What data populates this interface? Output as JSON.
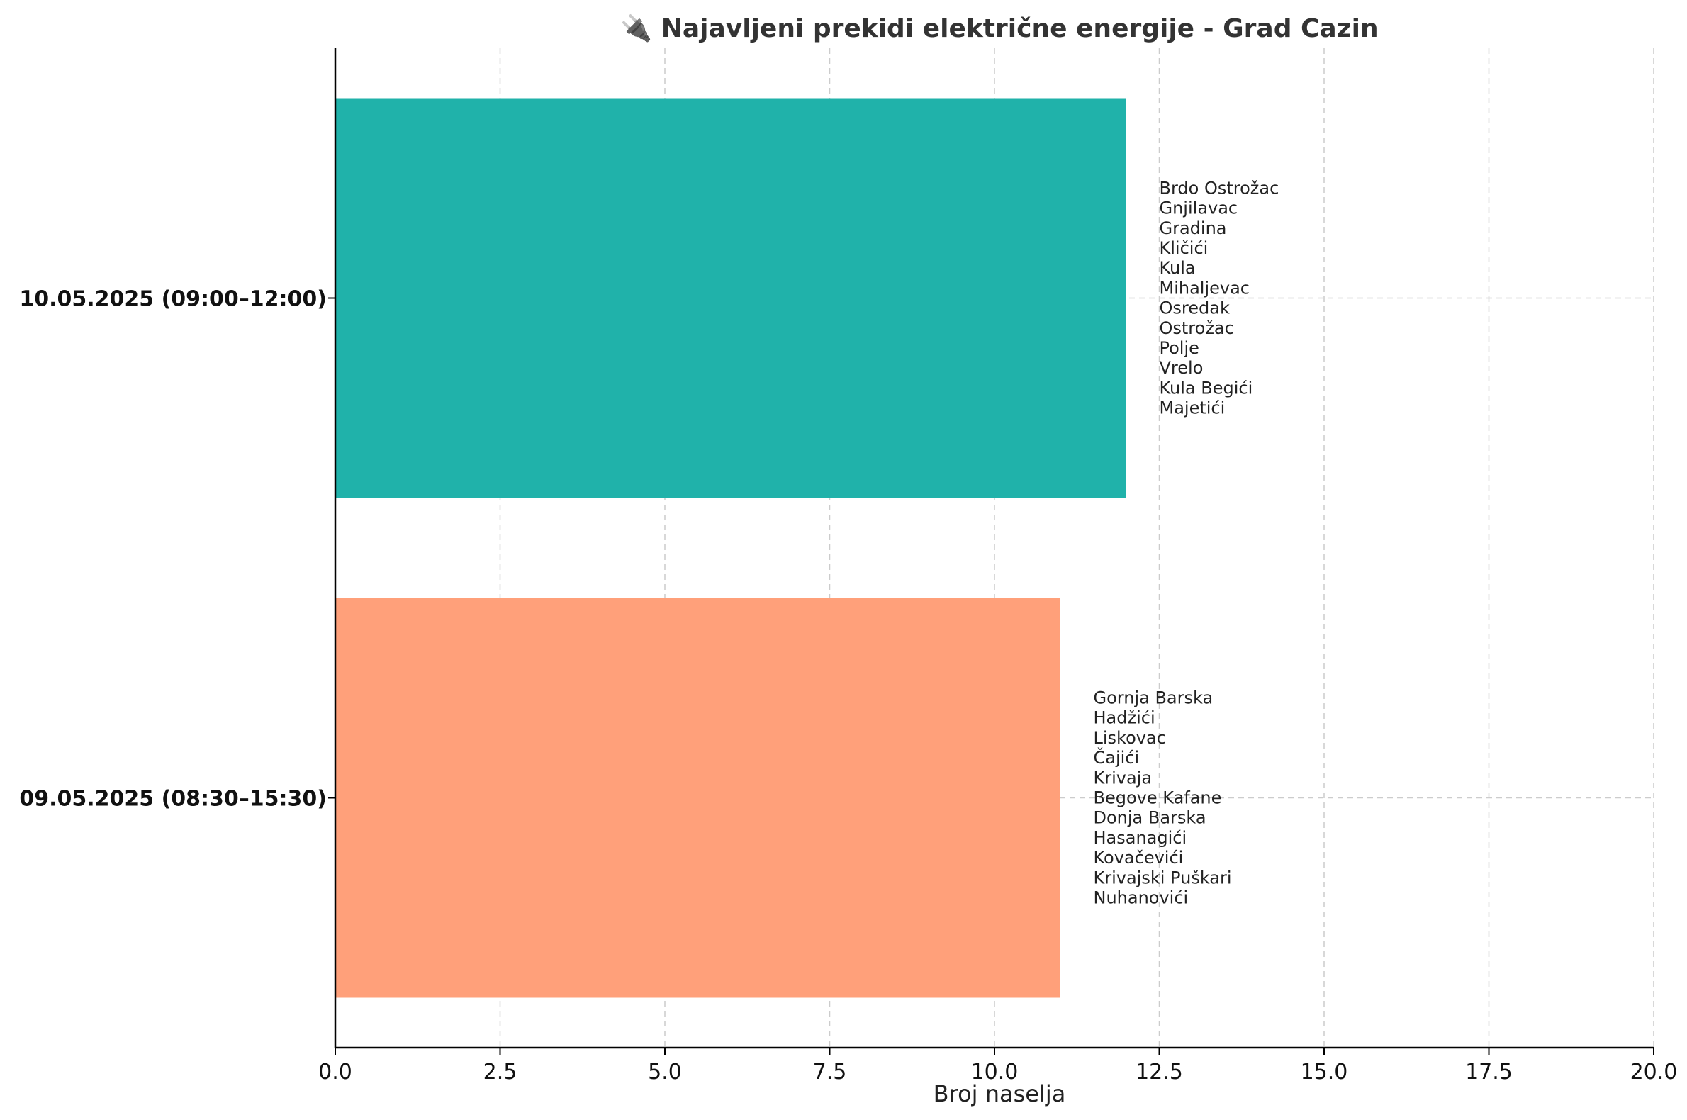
{
  "chart_data": {
    "type": "bar",
    "orientation": "horizontal",
    "title": "🔌 Najavljeni prekidi električne energije - Grad Cazin",
    "xlabel": "Broj naselja",
    "ylabel": "",
    "xlim": [
      0,
      20
    ],
    "x_ticks": [
      "0.0",
      "2.5",
      "5.0",
      "7.5",
      "10.0",
      "12.5",
      "15.0",
      "17.5",
      "20.0"
    ],
    "grid": true,
    "categories": [
      "10.05.2025 (09:00–12:00)",
      "09.05.2025 (08:30–15:30)"
    ],
    "values": [
      12,
      11
    ],
    "colors": [
      "#20b2aa",
      "#ffa07a"
    ],
    "annotations": [
      [
        "Brdo Ostrožac",
        "Gnjilavac",
        "Gradina",
        "Kličići",
        "Kula",
        "Mihaljevac",
        "Osredak",
        "Ostrožac",
        "Polje",
        "Vrelo",
        "Kula Begići",
        "Majetići"
      ],
      [
        "Gornja Barska",
        "Hadžići",
        "Liskovac",
        "Čajići",
        "Krivaja",
        "Begove Kafane",
        "Donja Barska",
        "Hasanagići",
        "Kovačevići",
        "Krivajski Puškari",
        "Nuhanovići"
      ]
    ]
  }
}
